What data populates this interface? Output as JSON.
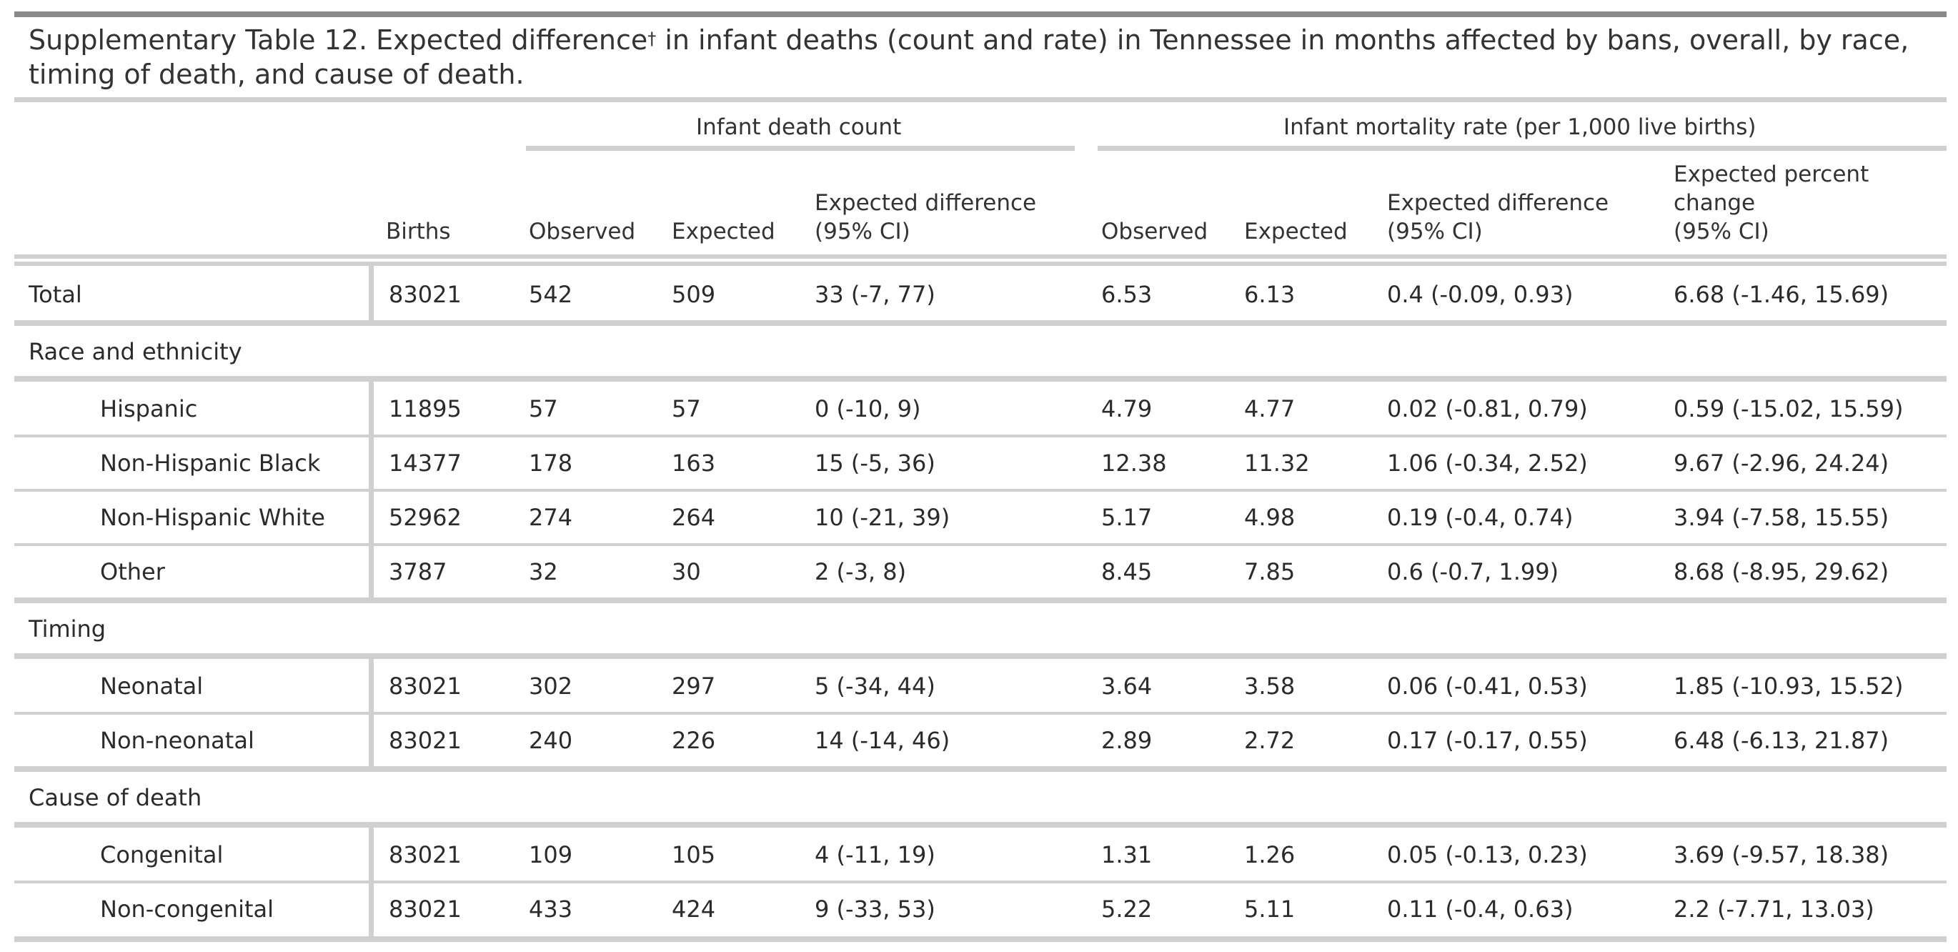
{
  "title": "Supplementary Table 12. Expected difference",
  "title_sup": "†",
  "title_rest": " in infant deaths (count and rate) in Tennessee in months affected by bans, overall, by race, timing of death, and cause of death.",
  "spanners": {
    "count": "Infant death count",
    "rate": "Infant mortality rate (per 1,000 live births)"
  },
  "columns": {
    "births": "Births",
    "count_observed": "Observed",
    "count_expected": "Expected",
    "count_diff_l1": "Expected difference",
    "count_diff_l2": "(95% CI)",
    "rate_observed": "Observed",
    "rate_expected": "Expected",
    "rate_diff_l1": "Expected difference",
    "rate_diff_l2": "(95% CI)",
    "pct_l1": "Expected percent",
    "pct_l2": "change",
    "pct_l3": "(95% CI)"
  },
  "rows": [
    {
      "label": "Total",
      "births": "83021",
      "obs": "542",
      "exp": "509",
      "diff": "33 (-7, 77)",
      "robs": "6.53",
      "rexp": "6.13",
      "rdiff": "0.4 (-0.09, 0.93)",
      "pct": "6.68 (-1.46, 15.69)"
    },
    {
      "label": "Hispanic",
      "births": "11895",
      "obs": "57",
      "exp": "57",
      "diff": "0 (-10, 9)",
      "robs": "4.79",
      "rexp": "4.77",
      "rdiff": "0.02 (-0.81, 0.79)",
      "pct": "0.59 (-15.02, 15.59)"
    },
    {
      "label": "Non-Hispanic Black",
      "births": "14377",
      "obs": "178",
      "exp": "163",
      "diff": "15 (-5, 36)",
      "robs": "12.38",
      "rexp": "11.32",
      "rdiff": "1.06 (-0.34, 2.52)",
      "pct": "9.67 (-2.96, 24.24)"
    },
    {
      "label": "Non-Hispanic White",
      "births": "52962",
      "obs": "274",
      "exp": "264",
      "diff": "10 (-21, 39)",
      "robs": "5.17",
      "rexp": "4.98",
      "rdiff": "0.19 (-0.4, 0.74)",
      "pct": "3.94 (-7.58, 15.55)"
    },
    {
      "label": "Other",
      "births": "3787",
      "obs": "32",
      "exp": "30",
      "diff": "2 (-3, 8)",
      "robs": "8.45",
      "rexp": "7.85",
      "rdiff": "0.6 (-0.7, 1.99)",
      "pct": "8.68 (-8.95, 29.62)"
    },
    {
      "label": "Neonatal",
      "births": "83021",
      "obs": "302",
      "exp": "297",
      "diff": "5 (-34, 44)",
      "robs": "3.64",
      "rexp": "3.58",
      "rdiff": "0.06 (-0.41, 0.53)",
      "pct": "1.85 (-10.93, 15.52)"
    },
    {
      "label": "Non-neonatal",
      "births": "83021",
      "obs": "240",
      "exp": "226",
      "diff": "14 (-14, 46)",
      "robs": "2.89",
      "rexp": "2.72",
      "rdiff": "0.17 (-0.17, 0.55)",
      "pct": "6.48 (-6.13, 21.87)"
    },
    {
      "label": "Congenital",
      "births": "83021",
      "obs": "109",
      "exp": "105",
      "diff": "4 (-11, 19)",
      "robs": "1.31",
      "rexp": "1.26",
      "rdiff": "0.05 (-0.13, 0.23)",
      "pct": "3.69 (-9.57, 18.38)"
    },
    {
      "label": "Non-congenital",
      "births": "83021",
      "obs": "433",
      "exp": "424",
      "diff": "9 (-33, 53)",
      "robs": "5.22",
      "rexp": "5.11",
      "rdiff": "0.11 (-0.4, 0.63)",
      "pct": "2.2 (-7.71, 13.03)"
    }
  ],
  "sections": {
    "race": "Race and ethnicity",
    "timing": "Timing",
    "cause": "Cause of death"
  }
}
